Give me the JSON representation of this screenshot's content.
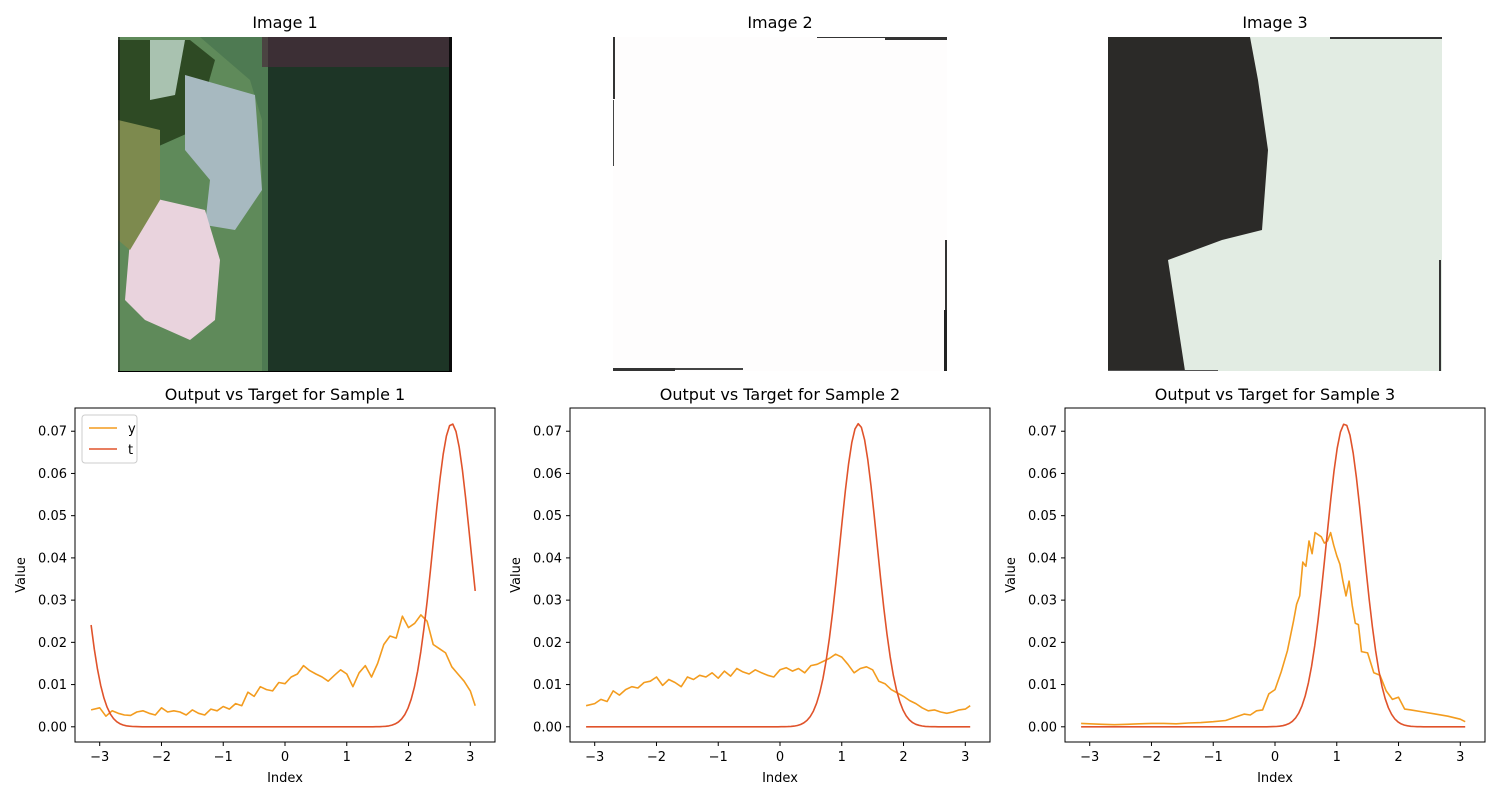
{
  "images": [
    {
      "title": "Image 1",
      "palette": [
        "#1f3a2a",
        "#6f8f62",
        "#e8d4da",
        "#4a3a3f"
      ]
    },
    {
      "title": "Image 2",
      "palette": [
        "#ffffff",
        "#222222"
      ]
    },
    {
      "title": "Image 3",
      "palette": [
        "#2a2a28",
        "#e4ede4"
      ]
    }
  ],
  "colors": {
    "y": "#f39c1f",
    "t": "#e0532b",
    "axis": "#000000"
  },
  "chart_data": [
    {
      "type": "line",
      "title": "Output vs Target for Sample 1",
      "xlabel": "Index",
      "ylabel": "Value",
      "xlim": [
        -3.4,
        3.4
      ],
      "ylim": [
        -0.0036,
        0.0755
      ],
      "xticks": [
        -3,
        -2,
        -1,
        0,
        1,
        2,
        3
      ],
      "yticks": [
        0.0,
        0.01,
        0.02,
        0.03,
        0.04,
        0.05,
        0.06,
        0.07
      ],
      "ytick_labels": [
        "0.00",
        "0.01",
        "0.02",
        "0.03",
        "0.04",
        "0.05",
        "0.06",
        "0.07"
      ],
      "xtick_labels": [
        "−3",
        "−2",
        "−1",
        "0",
        "1",
        "2",
        "3"
      ],
      "legend": {
        "show": true,
        "location": "upper left"
      },
      "series": [
        {
          "name": "y",
          "x": [
            -3.14,
            -3.0,
            -2.9,
            -2.8,
            -2.7,
            -2.6,
            -2.5,
            -2.4,
            -2.3,
            -2.2,
            -2.1,
            -2.0,
            -1.9,
            -1.8,
            -1.7,
            -1.6,
            -1.5,
            -1.4,
            -1.3,
            -1.2,
            -1.1,
            -1.0,
            -0.9,
            -0.8,
            -0.7,
            -0.6,
            -0.5,
            -0.4,
            -0.3,
            -0.2,
            -0.1,
            0.0,
            0.1,
            0.2,
            0.3,
            0.4,
            0.5,
            0.6,
            0.7,
            0.8,
            0.9,
            1.0,
            1.1,
            1.2,
            1.3,
            1.4,
            1.5,
            1.6,
            1.7,
            1.8,
            1.9,
            2.0,
            2.1,
            2.2,
            2.3,
            2.4,
            2.5,
            2.6,
            2.7,
            2.8,
            2.9,
            3.0,
            3.08
          ],
          "values": [
            0.004,
            0.0045,
            0.0025,
            0.0038,
            0.0032,
            0.0028,
            0.0027,
            0.0035,
            0.0038,
            0.0032,
            0.0028,
            0.0045,
            0.0035,
            0.0038,
            0.0035,
            0.0028,
            0.004,
            0.0032,
            0.0028,
            0.0042,
            0.0038,
            0.0048,
            0.0042,
            0.0055,
            0.005,
            0.0082,
            0.0072,
            0.0095,
            0.0088,
            0.0085,
            0.0105,
            0.0102,
            0.0118,
            0.0125,
            0.0145,
            0.0133,
            0.0125,
            0.0118,
            0.0108,
            0.0122,
            0.0135,
            0.0125,
            0.0095,
            0.0128,
            0.0145,
            0.0118,
            0.015,
            0.0195,
            0.0215,
            0.021,
            0.0262,
            0.0235,
            0.0245,
            0.0265,
            0.025,
            0.0195,
            0.0185,
            0.0175,
            0.0142,
            0.0125,
            0.0108,
            0.0085,
            0.005
          ]
        },
        {
          "name": "t",
          "gaussian": {
            "mu": 2.7,
            "sigma": 0.3,
            "amp": 0.0718,
            "period": 6.2832
          },
          "x_start": -3.14,
          "x_end": 3.08
        }
      ]
    },
    {
      "type": "line",
      "title": "Output vs Target for Sample 2",
      "xlabel": "Index",
      "ylabel": "Value",
      "xlim": [
        -3.4,
        3.4
      ],
      "ylim": [
        -0.0036,
        0.0755
      ],
      "xticks": [
        -3,
        -2,
        -1,
        0,
        1,
        2,
        3
      ],
      "yticks": [
        0.0,
        0.01,
        0.02,
        0.03,
        0.04,
        0.05,
        0.06,
        0.07
      ],
      "ytick_labels": [
        "0.00",
        "0.01",
        "0.02",
        "0.03",
        "0.04",
        "0.05",
        "0.06",
        "0.07"
      ],
      "xtick_labels": [
        "−3",
        "−2",
        "−1",
        "0",
        "1",
        "2",
        "3"
      ],
      "legend": {
        "show": false
      },
      "series": [
        {
          "name": "y",
          "x": [
            -3.14,
            -3.0,
            -2.9,
            -2.8,
            -2.7,
            -2.6,
            -2.5,
            -2.4,
            -2.3,
            -2.2,
            -2.1,
            -2.0,
            -1.9,
            -1.8,
            -1.7,
            -1.6,
            -1.5,
            -1.4,
            -1.3,
            -1.2,
            -1.1,
            -1.0,
            -0.9,
            -0.8,
            -0.7,
            -0.6,
            -0.5,
            -0.4,
            -0.3,
            -0.2,
            -0.1,
            0.0,
            0.1,
            0.2,
            0.3,
            0.4,
            0.5,
            0.6,
            0.7,
            0.8,
            0.9,
            1.0,
            1.1,
            1.2,
            1.3,
            1.4,
            1.5,
            1.6,
            1.7,
            1.8,
            1.9,
            2.0,
            2.1,
            2.2,
            2.3,
            2.4,
            2.5,
            2.6,
            2.7,
            2.8,
            2.9,
            3.0,
            3.08
          ],
          "values": [
            0.005,
            0.0055,
            0.0065,
            0.006,
            0.0085,
            0.0075,
            0.0088,
            0.0095,
            0.0092,
            0.0105,
            0.0108,
            0.0118,
            0.0098,
            0.0112,
            0.0105,
            0.0095,
            0.0118,
            0.0112,
            0.0122,
            0.0118,
            0.0128,
            0.0115,
            0.0132,
            0.012,
            0.0138,
            0.013,
            0.0125,
            0.0135,
            0.0128,
            0.0122,
            0.0118,
            0.0135,
            0.014,
            0.0132,
            0.0138,
            0.0128,
            0.0145,
            0.0148,
            0.0155,
            0.0162,
            0.0172,
            0.0165,
            0.0148,
            0.0128,
            0.0138,
            0.0142,
            0.0135,
            0.0108,
            0.0102,
            0.0088,
            0.008,
            0.0072,
            0.0062,
            0.0055,
            0.0045,
            0.0038,
            0.004,
            0.0035,
            0.0032,
            0.0035,
            0.004,
            0.0042,
            0.005
          ]
        },
        {
          "name": "t",
          "gaussian": {
            "mu": 1.27,
            "sigma": 0.3,
            "amp": 0.0718,
            "period": 6.2832
          },
          "x_start": -3.14,
          "x_end": 3.08
        }
      ]
    },
    {
      "type": "line",
      "title": "Output vs Target for Sample 3",
      "xlabel": "Index",
      "ylabel": "Value",
      "xlim": [
        -3.4,
        3.4
      ],
      "ylim": [
        -0.0036,
        0.0755
      ],
      "xticks": [
        -3,
        -2,
        -1,
        0,
        1,
        2,
        3
      ],
      "yticks": [
        0.0,
        0.01,
        0.02,
        0.03,
        0.04,
        0.05,
        0.06,
        0.07
      ],
      "ytick_labels": [
        "0.00",
        "0.01",
        "0.02",
        "0.03",
        "0.04",
        "0.05",
        "0.06",
        "0.07"
      ],
      "xtick_labels": [
        "−3",
        "−2",
        "−1",
        "0",
        "1",
        "2",
        "3"
      ],
      "legend": {
        "show": false
      },
      "series": [
        {
          "name": "y",
          "x": [
            -3.14,
            -3.0,
            -2.8,
            -2.6,
            -2.4,
            -2.2,
            -2.0,
            -1.8,
            -1.6,
            -1.4,
            -1.2,
            -1.0,
            -0.8,
            -0.7,
            -0.6,
            -0.5,
            -0.4,
            -0.3,
            -0.2,
            -0.1,
            0.0,
            0.1,
            0.2,
            0.3,
            0.35,
            0.4,
            0.45,
            0.5,
            0.55,
            0.6,
            0.65,
            0.7,
            0.75,
            0.8,
            0.85,
            0.9,
            0.95,
            1.0,
            1.05,
            1.1,
            1.15,
            1.2,
            1.25,
            1.3,
            1.35,
            1.4,
            1.5,
            1.6,
            1.7,
            1.8,
            1.9,
            2.0,
            2.1,
            2.2,
            2.4,
            2.6,
            2.8,
            3.0,
            3.08
          ],
          "values": [
            0.0008,
            0.0007,
            0.0006,
            0.0005,
            0.0006,
            0.0007,
            0.0008,
            0.0008,
            0.0007,
            0.0009,
            0.001,
            0.0012,
            0.0015,
            0.002,
            0.0025,
            0.003,
            0.0028,
            0.0038,
            0.004,
            0.0078,
            0.0088,
            0.013,
            0.018,
            0.025,
            0.029,
            0.031,
            0.039,
            0.038,
            0.044,
            0.041,
            0.046,
            0.0455,
            0.045,
            0.0435,
            0.044,
            0.046,
            0.043,
            0.0405,
            0.0385,
            0.0345,
            0.031,
            0.0345,
            0.0288,
            0.0245,
            0.0242,
            0.0178,
            0.0175,
            0.0128,
            0.0122,
            0.0085,
            0.0065,
            0.007,
            0.0042,
            0.004,
            0.0035,
            0.003,
            0.0025,
            0.0018,
            0.0012
          ]
        },
        {
          "name": "t",
          "gaussian": {
            "mu": 1.13,
            "sigma": 0.3,
            "amp": 0.0718,
            "period": 6.2832
          },
          "x_start": -3.14,
          "x_end": 3.08
        }
      ]
    }
  ]
}
